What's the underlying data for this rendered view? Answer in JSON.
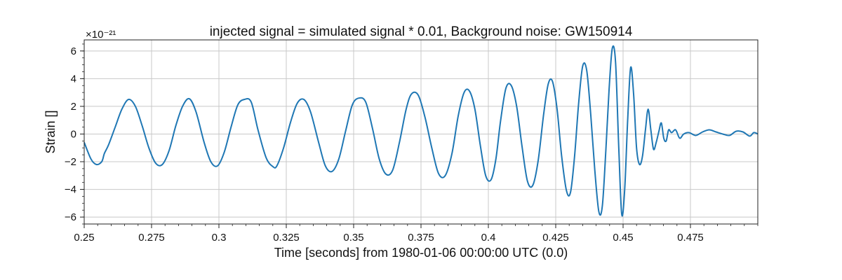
{
  "chart_data": {
    "type": "line",
    "title": "injected signal = simulated signal * 0.01, Background noise: GW150914",
    "xlabel": "Time [seconds] from 1980-01-06 00:00:00 UTC (0.0)",
    "ylabel": "Strain []",
    "y_offset_label": "×10⁻²¹",
    "xlim": [
      0.25,
      0.5
    ],
    "ylim": [
      -6.5,
      6.8
    ],
    "grid": true,
    "legend": "none",
    "x_ticks": [
      0.25,
      0.275,
      0.3,
      0.325,
      0.35,
      0.375,
      0.4,
      0.425,
      0.45,
      0.475
    ],
    "x_tick_labels": [
      "0.25",
      "0.275",
      "0.3",
      "0.325",
      "0.35",
      "0.375",
      "0.4",
      "0.425",
      "0.45",
      "0.475"
    ],
    "y_ticks": [
      -6,
      -4,
      -2,
      0,
      2,
      4,
      6
    ],
    "y_tick_labels": [
      "−6",
      "−4",
      "−2",
      "0",
      "2",
      "4",
      "6"
    ],
    "series": [
      {
        "color": "#1f77b4",
        "x": [
          0.25,
          0.2525,
          0.2545,
          0.2565,
          0.2575,
          0.259,
          0.2615,
          0.264,
          0.2665,
          0.269,
          0.2715,
          0.274,
          0.2765,
          0.279,
          0.2815,
          0.284,
          0.2865,
          0.289,
          0.2915,
          0.2945,
          0.297,
          0.2995,
          0.302,
          0.3045,
          0.307,
          0.3095,
          0.312,
          0.3145,
          0.3175,
          0.32,
          0.3215,
          0.324,
          0.3265,
          0.329,
          0.3315,
          0.334,
          0.337,
          0.3395,
          0.342,
          0.3445,
          0.347,
          0.3495,
          0.352,
          0.3545,
          0.357,
          0.3595,
          0.362,
          0.3645,
          0.367,
          0.3695,
          0.3715,
          0.374,
          0.3765,
          0.379,
          0.3815,
          0.384,
          0.3865,
          0.3888,
          0.391,
          0.393,
          0.395,
          0.397,
          0.399,
          0.401,
          0.4028,
          0.4045,
          0.4065,
          0.4085,
          0.4105,
          0.4125,
          0.4145,
          0.4165,
          0.4185,
          0.4205,
          0.4222,
          0.4238,
          0.4255,
          0.4272,
          0.429,
          0.4305,
          0.432,
          0.4335,
          0.435,
          0.4365,
          0.438,
          0.4395,
          0.441,
          0.4423,
          0.4436,
          0.4448,
          0.446,
          0.4472,
          0.4484,
          0.4495,
          0.4506,
          0.4517,
          0.4528,
          0.4539,
          0.455,
          0.4561,
          0.4572,
          0.4583,
          0.4593,
          0.4603,
          0.4613,
          0.4623,
          0.4633,
          0.4642,
          0.4651,
          0.466,
          0.4669,
          0.468,
          0.4695,
          0.471,
          0.4725,
          0.4745,
          0.477,
          0.4795,
          0.482,
          0.4845,
          0.487,
          0.4895,
          0.492,
          0.4945,
          0.497,
          0.4985,
          0.5
        ],
        "y": [
          -0.6,
          -1.8,
          -2.2,
          -2.0,
          -1.4,
          -0.8,
          0.5,
          1.8,
          2.5,
          2.0,
          0.6,
          -1.0,
          -2.1,
          -2.2,
          -1.2,
          0.6,
          2.0,
          2.55,
          1.6,
          -0.6,
          -2.0,
          -2.3,
          -1.3,
          0.5,
          2.1,
          2.5,
          2.3,
          0.3,
          -1.7,
          -2.35,
          -2.3,
          -1.0,
          0.8,
          2.2,
          2.5,
          1.6,
          -0.6,
          -2.3,
          -2.7,
          -1.8,
          0.2,
          2.1,
          2.6,
          2.3,
          0.4,
          -1.8,
          -2.9,
          -2.6,
          -0.6,
          1.8,
          2.9,
          2.8,
          1.2,
          -1.0,
          -2.85,
          -3.0,
          -1.4,
          1.3,
          3.0,
          3.1,
          1.8,
          -0.8,
          -3.0,
          -3.3,
          -1.8,
          0.9,
          3.3,
          3.5,
          2.0,
          -0.9,
          -3.4,
          -3.7,
          -1.9,
          1.4,
          3.6,
          3.8,
          1.8,
          -1.6,
          -4.1,
          -4.2,
          -1.6,
          2.2,
          4.9,
          4.6,
          1.4,
          -2.6,
          -5.6,
          -5.2,
          -1.2,
          3.2,
          6.2,
          5.2,
          -1.0,
          -5.8,
          -4.0,
          1.0,
          4.8,
          2.9,
          -1.0,
          -2.2,
          -1.6,
          0.3,
          1.8,
          0.3,
          -1.1,
          -0.6,
          0.2,
          0.8,
          -0.3,
          -0.5,
          0.3,
          0.1,
          0.3,
          -0.3,
          0.0,
          0.1,
          -0.1,
          0.15,
          0.3,
          0.15,
          0.0,
          -0.1,
          0.2,
          0.15,
          -0.15,
          0.1,
          0.0
        ]
      }
    ]
  }
}
